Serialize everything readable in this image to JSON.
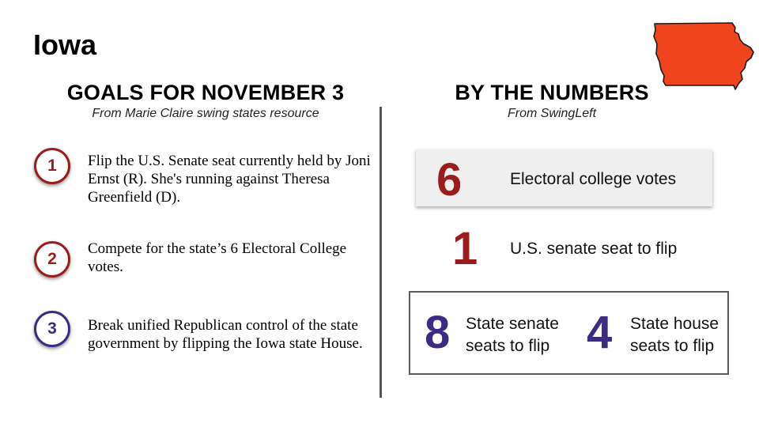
{
  "title": "Iowa",
  "colors": {
    "red": "#9b1c1c",
    "purple": "#3d2a84",
    "map_fill": "#f0441e"
  },
  "map_icon": "iowa-state-map",
  "goals": {
    "heading": "GOALS FOR NOVEMBER 3",
    "source": "From Marie Claire swing states resource",
    "items": [
      {
        "number": "1",
        "text": "Flip the U.S. Senate seat currently held by Joni Ernst (R). She's running against Theresa Greenfield (D)."
      },
      {
        "number": "2",
        "text": "Compete for the state’s 6 Electoral College votes."
      },
      {
        "number": "3",
        "text": "Break unified Republican control of the state government by flipping the Iowa state House."
      }
    ]
  },
  "numbers": {
    "heading": "BY THE NUMBERS",
    "source": "From SwingLeft",
    "electoral": {
      "value": "6",
      "label": "Electoral college votes"
    },
    "senate_seat": {
      "value": "1",
      "label": "U.S. senate seat to flip"
    },
    "state_senate": {
      "value": "8",
      "label": "State senate seats to flip"
    },
    "state_house": {
      "value": "4",
      "label": "State house seats to flip"
    }
  }
}
